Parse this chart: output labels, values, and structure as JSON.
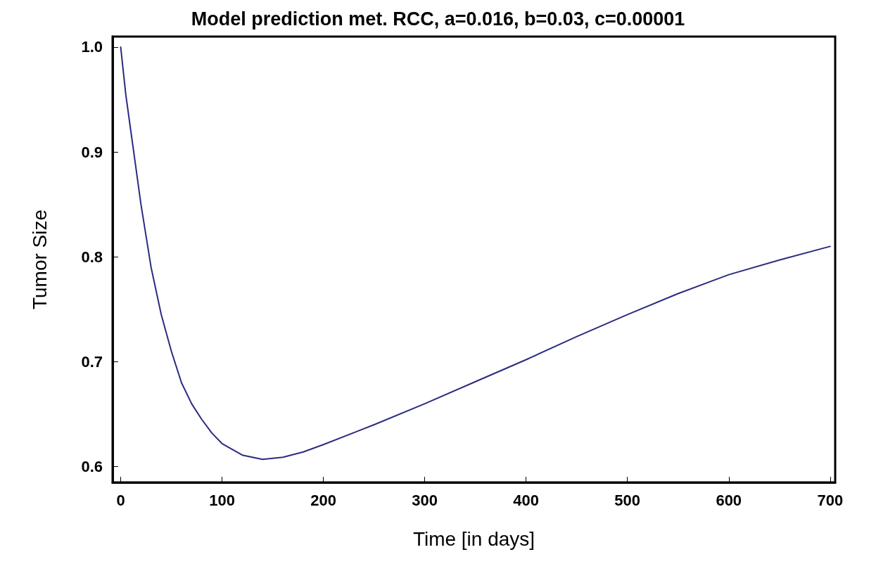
{
  "chart_data": {
    "type": "line",
    "title": "Model prediction met. RCC, a=0.016, b=0.03, c=0.00001",
    "xlabel": "Time [in days]",
    "ylabel": "Tumor Size",
    "x": [
      0,
      5,
      10,
      15,
      20,
      30,
      40,
      50,
      60,
      70,
      80,
      90,
      100,
      120,
      140,
      160,
      180,
      200,
      250,
      300,
      350,
      400,
      450,
      500,
      550,
      600,
      650,
      700
    ],
    "series": [
      {
        "color": "#2b2b80",
        "values": [
          1.0,
          0.955,
          0.92,
          0.885,
          0.85,
          0.79,
          0.745,
          0.71,
          0.68,
          0.66,
          0.645,
          0.632,
          0.622,
          0.611,
          0.607,
          0.609,
          0.614,
          0.621,
          0.64,
          0.66,
          0.681,
          0.702,
          0.724,
          0.745,
          0.765,
          0.783,
          0.797,
          0.81
        ]
      }
    ],
    "xlim": [
      -8,
      705
    ],
    "ylim": [
      0.585,
      1.01
    ],
    "xticks": [
      0,
      100,
      200,
      300,
      400,
      500,
      600,
      700
    ],
    "yticks": [
      0.6,
      0.7,
      0.8,
      0.9,
      {
        "value": 1,
        "label": "1.0"
      }
    ],
    "grid": false,
    "marker": "none",
    "line_style": "solid"
  }
}
